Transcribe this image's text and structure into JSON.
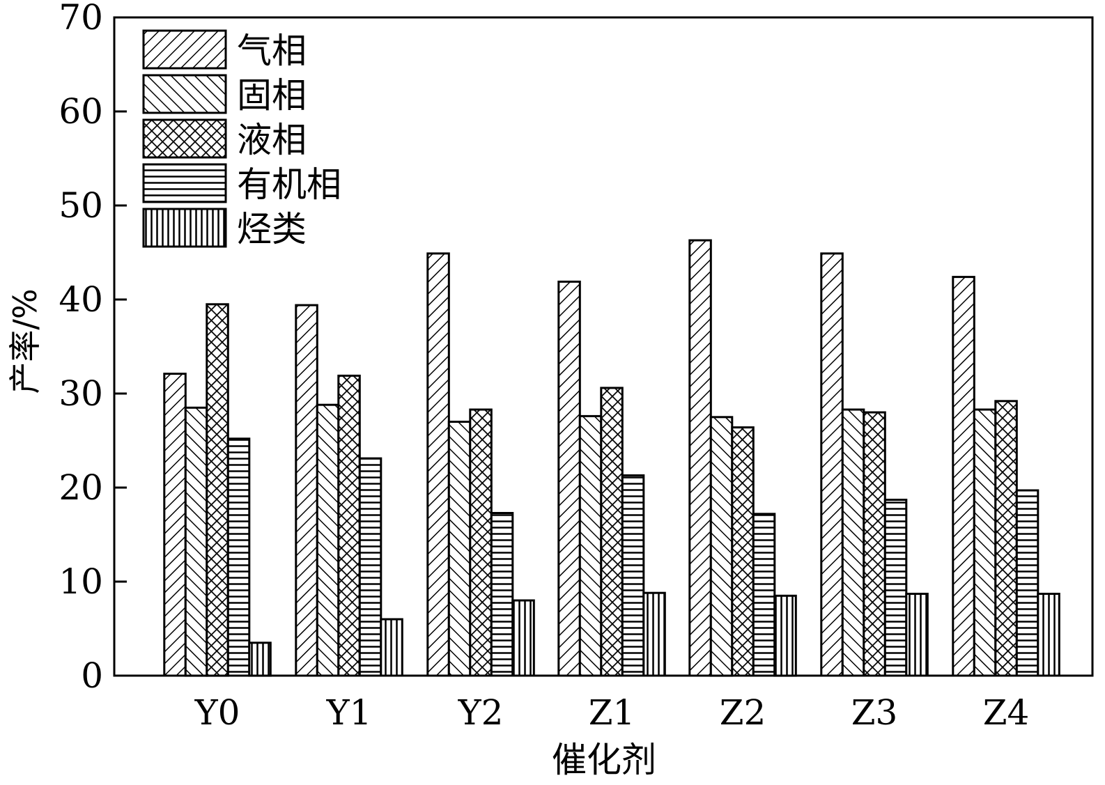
{
  "chart_data": {
    "type": "bar",
    "title": "",
    "xlabel": "催化剂",
    "ylabel": "产率/%",
    "ylim": [
      0,
      70
    ],
    "yticks": [
      "0",
      "10",
      "20",
      "30",
      "40",
      "50",
      "60",
      "70"
    ],
    "categories": [
      "Y0",
      "Y1",
      "Y2",
      "Z1",
      "Z2",
      "Z3",
      "Z4"
    ],
    "legend_position": "top-left",
    "grid": false,
    "series": [
      {
        "name": "气相",
        "pattern": "diagonal-up",
        "values": [
          32.1,
          39.4,
          44.9,
          41.9,
          46.3,
          44.9,
          42.4
        ]
      },
      {
        "name": "固相",
        "pattern": "diagonal-down",
        "values": [
          28.5,
          28.8,
          27.0,
          27.6,
          27.5,
          28.3,
          28.3
        ]
      },
      {
        "name": "液相",
        "pattern": "crosshatch",
        "values": [
          39.5,
          31.9,
          28.3,
          30.6,
          26.4,
          28.0,
          29.2
        ]
      },
      {
        "name": "有机相",
        "pattern": "horizontal",
        "values": [
          25.2,
          23.1,
          17.3,
          21.3,
          17.2,
          18.7,
          19.7
        ]
      },
      {
        "name": "烃类",
        "pattern": "vertical",
        "values": [
          3.5,
          6.0,
          8.0,
          8.8,
          8.5,
          8.7,
          8.7
        ]
      }
    ],
    "colors": {
      "ink": "#000000",
      "background": "#ffffff"
    }
  }
}
